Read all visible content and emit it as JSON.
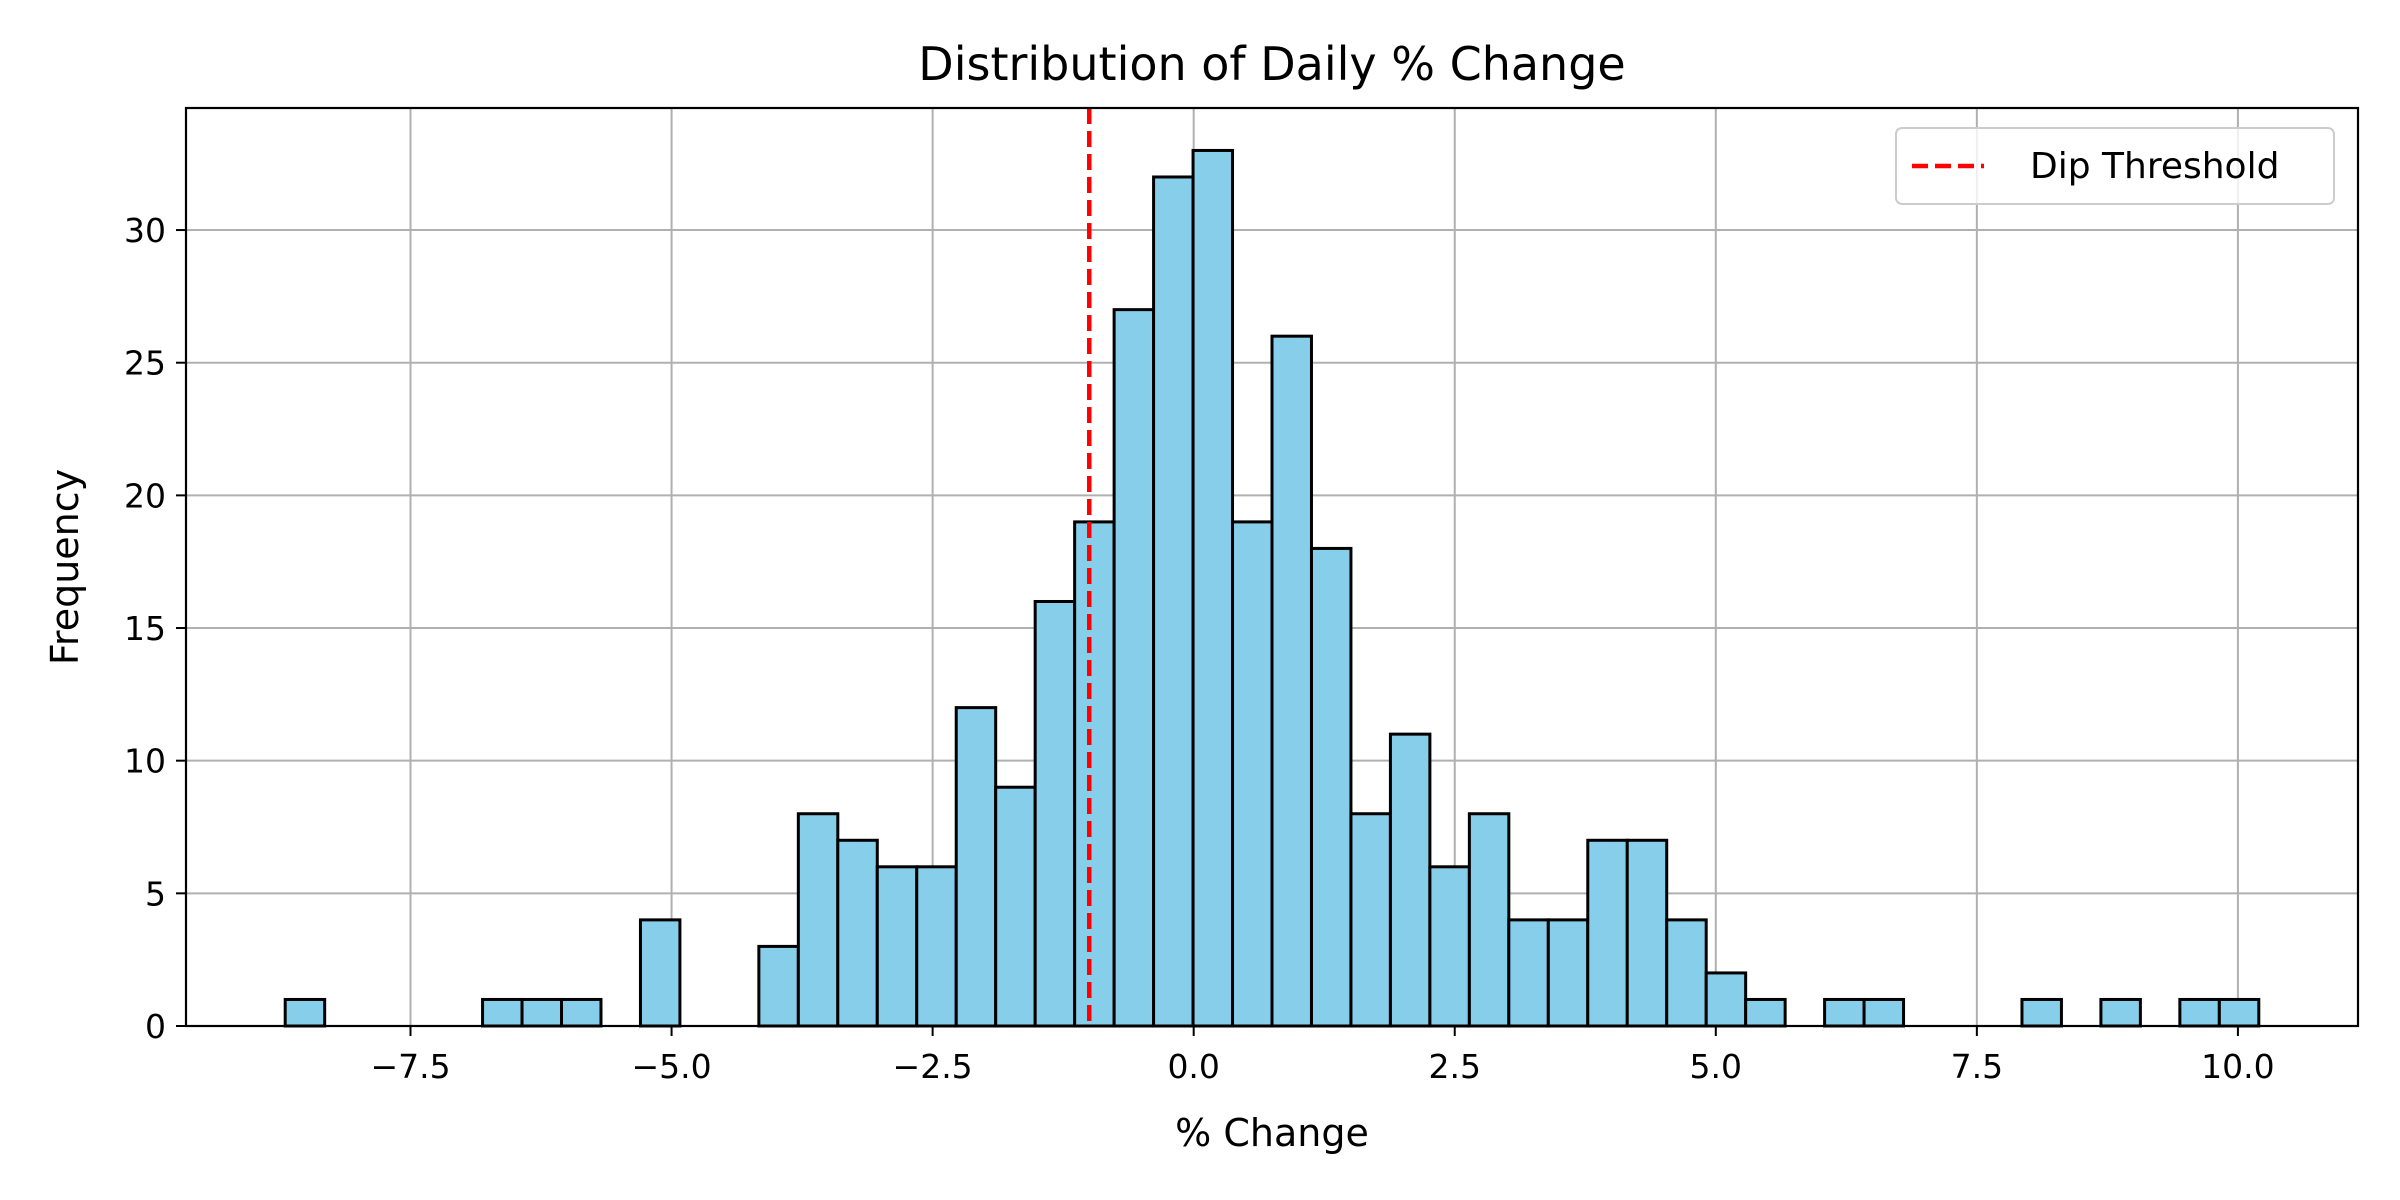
{
  "chart_data": {
    "type": "bar",
    "subtype": "histogram",
    "title": "Distribution of Daily % Change",
    "xlabel": "% Change",
    "ylabel": "Frequency",
    "xlim": [
      -9.65,
      11.15
    ],
    "ylim": [
      0,
      34.6
    ],
    "xticks": [
      -7.5,
      -5.0,
      -2.5,
      0.0,
      2.5,
      5.0,
      7.5,
      10.0
    ],
    "xtick_labels": [
      "−7.5",
      "−5.0",
      "−2.5",
      "0.0",
      "2.5",
      "5.0",
      "7.5",
      "10.0"
    ],
    "yticks": [
      0,
      5,
      10,
      15,
      20,
      25,
      30
    ],
    "ytick_labels": [
      "0",
      "5",
      "10",
      "15",
      "20",
      "25",
      "30"
    ],
    "bin_start": -8.7,
    "bin_width": 0.378,
    "counts": [
      1,
      0,
      0,
      0,
      0,
      1,
      1,
      1,
      0,
      4,
      0,
      0,
      3,
      8,
      7,
      6,
      6,
      12,
      9,
      16,
      19,
      27,
      32,
      33,
      19,
      26,
      18,
      8,
      11,
      6,
      8,
      4,
      4,
      7,
      7,
      4,
      2,
      1,
      0,
      1,
      1,
      0,
      0,
      0,
      1,
      0,
      1,
      0,
      1,
      1
    ],
    "bar_color": "#87CEEB",
    "bar_edge_color": "#000000",
    "grid": true,
    "threshold": {
      "name": "Dip Threshold",
      "x": -1.0,
      "color": "#FF0000",
      "style": "dashed"
    },
    "legend": {
      "position": "top-right",
      "entries": [
        "Dip Threshold"
      ]
    }
  }
}
